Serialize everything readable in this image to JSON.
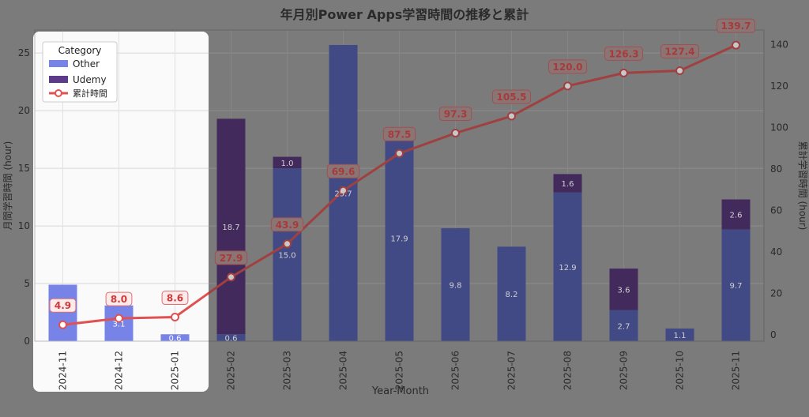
{
  "chart_data": {
    "type": "bar",
    "title": "年月別Power Apps学習時間の推移と累計",
    "xlabel": "Year-Month",
    "ylabel": "月間学習時間 (hour)",
    "y2label": "累計学習時間 (hour)",
    "categories": [
      "2024-11",
      "2024-12",
      "2025-01",
      "2025-02",
      "2025-03",
      "2025-04",
      "2025-05",
      "2025-06",
      "2025-07",
      "2025-08",
      "2025-09",
      "2025-10",
      "2025-11"
    ],
    "series": [
      {
        "name": "Other",
        "values": [
          4.9,
          3.1,
          0.6,
          0.6,
          15.0,
          25.7,
          17.9,
          9.8,
          8.2,
          12.9,
          2.7,
          1.1,
          9.7
        ],
        "labels": [
          "",
          "3.1",
          "0.6",
          "0.6",
          "15.0",
          "25.7",
          "17.9",
          "9.8",
          "8.2",
          "12.9",
          "2.7",
          "1.1",
          "9.7"
        ]
      },
      {
        "name": "Udemy",
        "values": [
          0,
          0,
          0,
          18.7,
          1.0,
          0,
          0,
          0,
          0,
          1.6,
          3.6,
          0,
          2.6
        ],
        "labels": [
          "",
          "",
          "",
          "18.7",
          "1.0",
          "",
          "",
          "",
          "",
          "1.6",
          "3.6",
          "",
          "2.6"
        ]
      }
    ],
    "cumulative": {
      "name": "累計時間",
      "values": [
        4.9,
        8.0,
        8.6,
        27.9,
        43.9,
        69.6,
        87.5,
        97.3,
        105.5,
        120.0,
        126.3,
        127.4,
        139.7
      ],
      "labels": [
        "4.9",
        "8.0",
        "8.6",
        "27.9",
        "43.9",
        "69.6",
        "87.5",
        "97.3",
        "105.5",
        "120.0",
        "126.3",
        "127.4",
        "139.7"
      ]
    },
    "ylim": [
      0,
      27
    ],
    "y2lim": [
      -3,
      147
    ],
    "yticks": [
      "0",
      "5",
      "10",
      "15",
      "20",
      "25"
    ],
    "y2ticks": [
      "0",
      "20",
      "40",
      "60",
      "80",
      "100",
      "120",
      "140"
    ],
    "legend": {
      "title": "Category",
      "placement": "upper-left"
    },
    "grid": true,
    "colors": {
      "Other": "#7783e6",
      "Udemy": "#5e3b8a",
      "cumulative": "#e05252",
      "background": "#7b7b7b",
      "highlight": "#fafafa"
    }
  }
}
